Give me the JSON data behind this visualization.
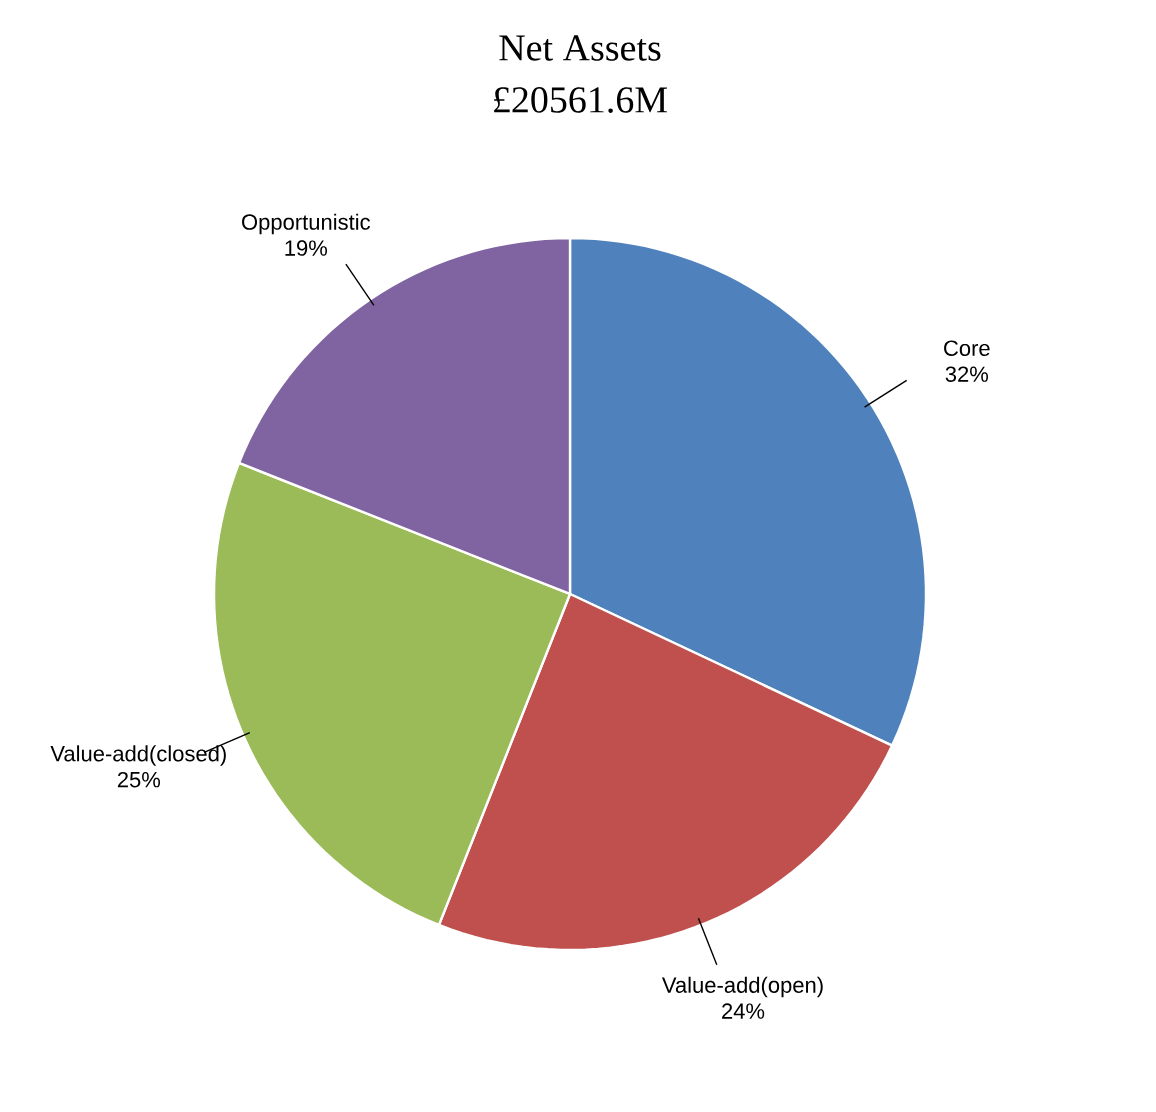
{
  "chart_data": {
    "type": "pie",
    "title": "Net Assets",
    "subtitle": "£20561.6M",
    "categories": [
      "Core",
      "Value-add(open)",
      "Value-add(closed)",
      "Opportunistic"
    ],
    "values": [
      32,
      24,
      25,
      19
    ],
    "value_labels": [
      "32%",
      "24%",
      "25%",
      "19%"
    ],
    "colors": [
      "#4f81bd",
      "#c0504d",
      "#9bbb59",
      "#8064a2"
    ]
  }
}
